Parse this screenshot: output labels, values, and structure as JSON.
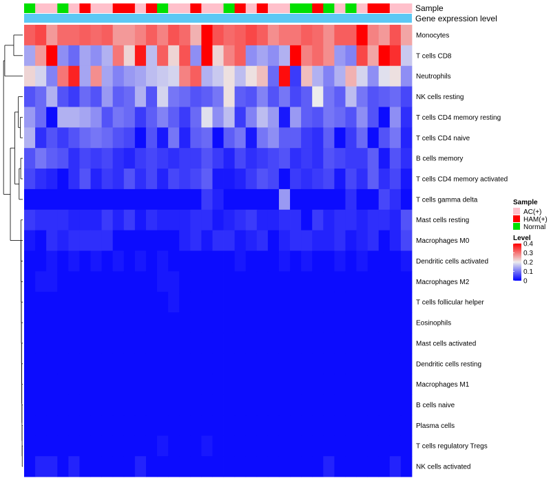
{
  "chart_data": {
    "type": "heatmap",
    "title": "",
    "annotations": {
      "sample_label": "Sample",
      "level_label": "Gene expression level"
    },
    "sample_groups": [
      "Normal",
      "AC(+)",
      "AC(+)",
      "Normal",
      "AC(+)",
      "HAM(+)",
      "AC(+)",
      "AC(+)",
      "HAM(+)",
      "HAM(+)",
      "AC(+)",
      "HAM(+)",
      "Normal",
      "AC(+)",
      "AC(+)",
      "HAM(+)",
      "AC(+)",
      "AC(+)",
      "Normal",
      "HAM(+)",
      "AC(+)",
      "HAM(+)",
      "AC(+)",
      "AC(+)",
      "Normal",
      "Normal",
      "HAM(+)",
      "Normal",
      "AC(+)",
      "Normal",
      "AC(+)",
      "HAM(+)",
      "HAM(+)",
      "AC(+)",
      "AC(+)"
    ],
    "rows": [
      "Monocytes",
      "T cells CD8",
      "Neutrophils",
      "NK cells resting",
      "T cells CD4 memory resting",
      "T cells CD4 naive",
      "B cells memory",
      "T cells CD4 memory activated",
      "T cells gamma delta",
      "Mast cells resting",
      "Macrophages M0",
      "Dendritic cells activated",
      "Macrophages M2",
      "T cells follicular helper",
      "Eosinophils",
      "Mast cells activated",
      "Dendritic cells resting",
      "Macrophages M1",
      "B cells naive",
      "Plasma cells",
      "T cells regulatory  Tregs",
      "NK cells activated"
    ],
    "values": [
      [
        0.32,
        0.34,
        0.27,
        0.31,
        0.31,
        0.32,
        0.31,
        0.32,
        0.27,
        0.27,
        0.29,
        0.32,
        0.29,
        0.33,
        0.31,
        0.25,
        0.4,
        0.33,
        0.31,
        0.32,
        0.34,
        0.32,
        0.28,
        0.3,
        0.3,
        0.32,
        0.31,
        0.28,
        0.32,
        0.32,
        0.4,
        0.29,
        0.27,
        0.33,
        0.26
      ],
      [
        0.14,
        0.27,
        0.4,
        0.12,
        0.09,
        0.14,
        0.12,
        0.15,
        0.3,
        0.22,
        0.38,
        0.16,
        0.32,
        0.22,
        0.33,
        0.12,
        0.4,
        0.22,
        0.29,
        0.32,
        0.12,
        0.14,
        0.12,
        0.15,
        0.4,
        0.29,
        0.31,
        0.28,
        0.13,
        0.11,
        0.34,
        0.26,
        0.4,
        0.36,
        0.17
      ],
      [
        0.22,
        0.18,
        0.11,
        0.3,
        0.37,
        0.14,
        0.28,
        0.14,
        0.11,
        0.13,
        0.14,
        0.16,
        0.17,
        0.18,
        0.29,
        0.32,
        0.15,
        0.17,
        0.21,
        0.16,
        0.21,
        0.24,
        0.09,
        0.39,
        0.05,
        0.24,
        0.15,
        0.11,
        0.15,
        0.25,
        0.18,
        0.12,
        0.19,
        0.21,
        0.12
      ],
      [
        0.07,
        0.09,
        0.15,
        0.07,
        0.05,
        0.09,
        0.07,
        0.13,
        0.08,
        0.09,
        0.15,
        0.07,
        0.18,
        0.1,
        0.09,
        0.07,
        0.08,
        0.1,
        0.21,
        0.08,
        0.07,
        0.11,
        0.07,
        0.1,
        0.06,
        0.08,
        0.2,
        0.1,
        0.08,
        0.16,
        0.1,
        0.07,
        0.08,
        0.09,
        0.06
      ],
      [
        0.13,
        0.09,
        0.01,
        0.15,
        0.15,
        0.14,
        0.12,
        0.07,
        0.1,
        0.09,
        0.05,
        0.08,
        0.11,
        0.08,
        0.05,
        0.09,
        0.19,
        0.12,
        0.16,
        0.05,
        0.11,
        0.16,
        0.13,
        0.02,
        0.13,
        0.08,
        0.07,
        0.1,
        0.09,
        0.07,
        0.12,
        0.07,
        0.01,
        0.12,
        0.04
      ],
      [
        0.15,
        0.04,
        0.07,
        0.05,
        0.07,
        0.09,
        0.1,
        0.09,
        0.07,
        0.06,
        0.01,
        0.07,
        0.02,
        0.1,
        0.03,
        0.08,
        0.09,
        0.01,
        0.08,
        0.1,
        0.02,
        0.1,
        0.12,
        0.08,
        0.08,
        0.05,
        0.04,
        0.08,
        0.01,
        0.05,
        0.09,
        0.01,
        0.07,
        0.1,
        0.03
      ],
      [
        0.07,
        0.1,
        0.08,
        0.07,
        0.04,
        0.06,
        0.05,
        0.06,
        0.04,
        0.03,
        0.05,
        0.06,
        0.05,
        0.04,
        0.05,
        0.05,
        0.07,
        0.05,
        0.03,
        0.06,
        0.04,
        0.05,
        0.06,
        0.07,
        0.04,
        0.05,
        0.04,
        0.07,
        0.06,
        0.05,
        0.05,
        0.08,
        0.02,
        0.07,
        0.04
      ],
      [
        0.06,
        0.04,
        0.03,
        0.01,
        0.04,
        0.07,
        0.03,
        0.05,
        0.04,
        0.07,
        0.04,
        0.06,
        0.03,
        0.06,
        0.05,
        0.06,
        0.08,
        0.02,
        0.02,
        0.03,
        0.05,
        0.07,
        0.06,
        0.01,
        0.05,
        0.04,
        0.05,
        0.06,
        0.02,
        0.06,
        0.04,
        0.08,
        0.04,
        0.06,
        0.02
      ],
      [
        0.01,
        0.01,
        0.01,
        0.01,
        0.01,
        0.01,
        0.01,
        0.01,
        0.01,
        0.01,
        0.01,
        0.01,
        0.01,
        0.01,
        0.01,
        0.01,
        0.05,
        0.03,
        0.01,
        0.01,
        0.01,
        0.01,
        0.01,
        0.13,
        0.01,
        0.01,
        0.01,
        0.01,
        0.01,
        0.04,
        0.01,
        0.01,
        0.06,
        0.04,
        0.01
      ],
      [
        0.05,
        0.04,
        0.04,
        0.04,
        0.03,
        0.03,
        0.03,
        0.05,
        0.03,
        0.05,
        0.02,
        0.04,
        0.03,
        0.03,
        0.03,
        0.04,
        0.04,
        0.02,
        0.03,
        0.04,
        0.05,
        0.03,
        0.03,
        0.04,
        0.04,
        0.01,
        0.05,
        0.03,
        0.04,
        0.04,
        0.03,
        0.04,
        0.04,
        0.03,
        0.07
      ],
      [
        0.02,
        0.01,
        0.04,
        0.03,
        0.04,
        0.04,
        0.04,
        0.04,
        0.01,
        0.01,
        0.01,
        0.01,
        0.01,
        0.01,
        0.03,
        0.04,
        0.02,
        0.04,
        0.04,
        0.02,
        0.03,
        0.04,
        0.01,
        0.03,
        0.04,
        0.04,
        0.03,
        0.03,
        0.04,
        0.02,
        0.03,
        0.04,
        0.01,
        0.03,
        0.06
      ],
      [
        0.01,
        0.01,
        0.02,
        0.01,
        0.02,
        0.01,
        0.02,
        0.01,
        0.02,
        0.01,
        0.02,
        0.01,
        0.02,
        0.01,
        0.01,
        0.01,
        0.01,
        0.01,
        0.01,
        0.02,
        0.01,
        0.01,
        0.01,
        0.02,
        0.01,
        0.02,
        0.01,
        0.01,
        0.02,
        0.01,
        0.02,
        0.01,
        0.01,
        0.01,
        0.02
      ],
      [
        0.01,
        0.02,
        0.02,
        0.01,
        0.01,
        0.01,
        0.01,
        0.01,
        0.01,
        0.01,
        0.01,
        0.01,
        0.02,
        0.02,
        0.01,
        0.01,
        0.01,
        0.01,
        0.01,
        0.01,
        0.01,
        0.01,
        0.01,
        0.01,
        0.01,
        0.01,
        0.01,
        0.01,
        0.01,
        0.01,
        0.01,
        0.01,
        0.01,
        0.01,
        0.01
      ],
      [
        0.01,
        0.01,
        0.01,
        0.01,
        0.01,
        0.01,
        0.01,
        0.01,
        0.01,
        0.01,
        0.01,
        0.01,
        0.01,
        0.02,
        0.01,
        0.01,
        0.01,
        0.01,
        0.01,
        0.01,
        0.01,
        0.01,
        0.01,
        0.01,
        0.01,
        0.01,
        0.01,
        0.01,
        0.01,
        0.01,
        0.01,
        0.01,
        0.01,
        0.01,
        0.01
      ],
      [
        0.01,
        0.01,
        0.01,
        0.01,
        0.01,
        0.01,
        0.01,
        0.01,
        0.01,
        0.01,
        0.01,
        0.01,
        0.01,
        0.01,
        0.01,
        0.01,
        0.01,
        0.01,
        0.01,
        0.01,
        0.01,
        0.01,
        0.01,
        0.01,
        0.01,
        0.01,
        0.01,
        0.01,
        0.01,
        0.01,
        0.01,
        0.01,
        0.01,
        0.01,
        0.01
      ],
      [
        0.01,
        0.01,
        0.01,
        0.01,
        0.01,
        0.01,
        0.01,
        0.01,
        0.01,
        0.01,
        0.01,
        0.01,
        0.01,
        0.01,
        0.01,
        0.01,
        0.01,
        0.01,
        0.01,
        0.01,
        0.01,
        0.01,
        0.01,
        0.01,
        0.01,
        0.01,
        0.01,
        0.01,
        0.01,
        0.01,
        0.01,
        0.01,
        0.01,
        0.01,
        0.01
      ],
      [
        0.01,
        0.01,
        0.01,
        0.01,
        0.01,
        0.01,
        0.01,
        0.01,
        0.01,
        0.01,
        0.01,
        0.01,
        0.01,
        0.01,
        0.01,
        0.01,
        0.01,
        0.01,
        0.01,
        0.01,
        0.01,
        0.01,
        0.01,
        0.01,
        0.01,
        0.01,
        0.01,
        0.01,
        0.01,
        0.01,
        0.01,
        0.01,
        0.01,
        0.01,
        0.01
      ],
      [
        0.01,
        0.01,
        0.01,
        0.01,
        0.01,
        0.01,
        0.01,
        0.01,
        0.01,
        0.01,
        0.01,
        0.01,
        0.01,
        0.01,
        0.01,
        0.01,
        0.01,
        0.01,
        0.01,
        0.01,
        0.01,
        0.01,
        0.01,
        0.01,
        0.01,
        0.01,
        0.01,
        0.01,
        0.01,
        0.01,
        0.01,
        0.01,
        0.01,
        0.01,
        0.01
      ],
      [
        0.01,
        0.01,
        0.01,
        0.01,
        0.01,
        0.01,
        0.01,
        0.01,
        0.01,
        0.01,
        0.01,
        0.01,
        0.01,
        0.01,
        0.01,
        0.01,
        0.01,
        0.01,
        0.01,
        0.01,
        0.01,
        0.01,
        0.01,
        0.01,
        0.01,
        0.01,
        0.01,
        0.01,
        0.01,
        0.01,
        0.01,
        0.01,
        0.01,
        0.01,
        0.01
      ],
      [
        0.01,
        0.01,
        0.01,
        0.01,
        0.01,
        0.01,
        0.01,
        0.01,
        0.01,
        0.01,
        0.01,
        0.01,
        0.01,
        0.01,
        0.01,
        0.01,
        0.01,
        0.01,
        0.01,
        0.01,
        0.01,
        0.01,
        0.01,
        0.01,
        0.01,
        0.01,
        0.01,
        0.01,
        0.01,
        0.01,
        0.01,
        0.01,
        0.01,
        0.01,
        0.01
      ],
      [
        0.01,
        0.01,
        0.01,
        0.01,
        0.01,
        0.01,
        0.01,
        0.01,
        0.01,
        0.01,
        0.01,
        0.01,
        0.02,
        0.01,
        0.01,
        0.01,
        0.02,
        0.01,
        0.01,
        0.01,
        0.01,
        0.01,
        0.01,
        0.01,
        0.01,
        0.01,
        0.01,
        0.01,
        0.01,
        0.01,
        0.01,
        0.01,
        0.01,
        0.01,
        0.01
      ],
      [
        0.01,
        0.03,
        0.03,
        0.01,
        0.03,
        0.01,
        0.01,
        0.01,
        0.01,
        0.01,
        0.03,
        0.01,
        0.01,
        0.01,
        0.01,
        0.01,
        0.01,
        0.01,
        0.01,
        0.01,
        0.01,
        0.01,
        0.01,
        0.01,
        0.01,
        0.01,
        0.01,
        0.03,
        0.01,
        0.01,
        0.01,
        0.01,
        0.01,
        0.03,
        0.01
      ]
    ],
    "scale": {
      "min": 0,
      "max": 0.4,
      "ticks": [
        "0.4",
        "0.3",
        "0.2",
        "0.1",
        "0"
      ]
    },
    "legend": {
      "position": "right",
      "sample_title": "Sample",
      "sample_entries": [
        {
          "label": "AC(+)",
          "color": "#ffc0cb"
        },
        {
          "label": "HAM(+)",
          "color": "#ff0000"
        },
        {
          "label": "Normal",
          "color": "#00e000"
        }
      ],
      "level_title": "Level"
    },
    "colors": {
      "low": "#0000ff",
      "mid": "#ececec",
      "high": "#ff0000",
      "level_bar": "#5cc8f4"
    },
    "dendrogram_heights": [
      0.96,
      0.9,
      0.7,
      0.62,
      0.55,
      0.4,
      0.26
    ]
  }
}
